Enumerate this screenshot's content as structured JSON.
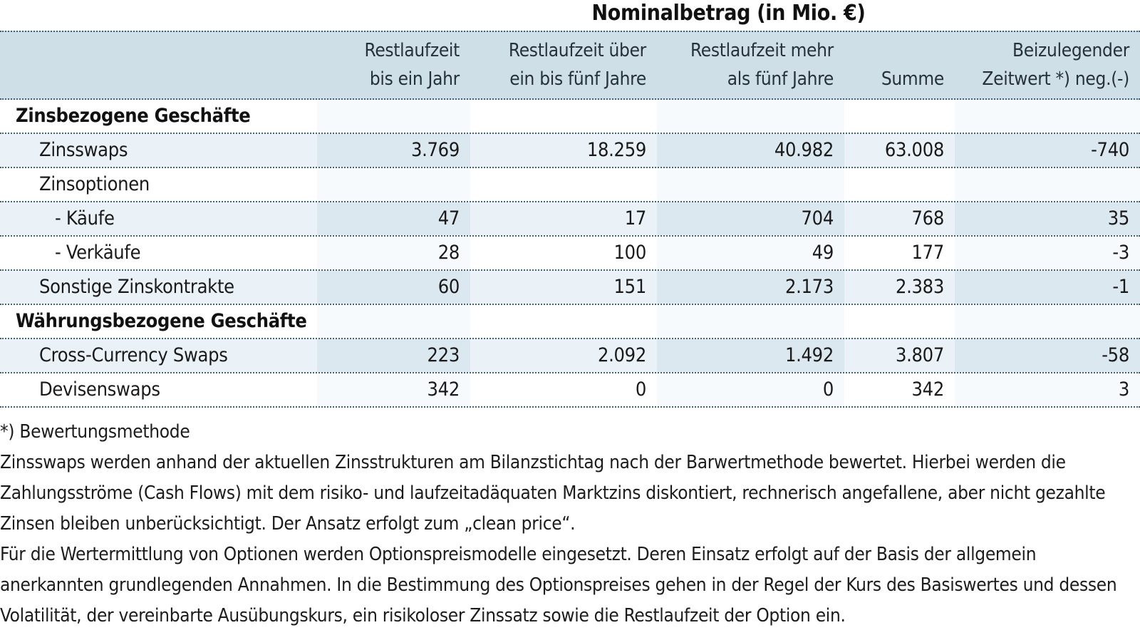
{
  "title": "Nominalbetrag (in Mio. €)",
  "table": {
    "header": {
      "col1_line1": "Restlaufzeit",
      "col1_line2": "bis ein Jahr",
      "col2_line1": "Restlaufzeit über",
      "col2_line2": "ein bis fünf Jahre",
      "col3_line1": "Restlaufzeit mehr",
      "col3_line2": "als fünf Jahre",
      "col4_line1": "",
      "col4_line2": "Summe",
      "col5_line1": "Beizulegender",
      "col5_line2": "Zeitwert *) neg.(-)"
    },
    "rows": [
      {
        "label": "Zinsbezogene Geschäfte",
        "values": [
          "",
          "",
          "",
          "",
          ""
        ]
      },
      {
        "label": "Zinsswaps",
        "values": [
          "3.769",
          "18.259",
          "40.982",
          "63.008",
          "-740"
        ]
      },
      {
        "label": "Zinsoptionen",
        "values": [
          "",
          "",
          "",
          "",
          ""
        ]
      },
      {
        "label": "- Käufe",
        "values": [
          "47",
          "17",
          "704",
          "768",
          "35"
        ]
      },
      {
        "label": "- Verkäufe",
        "values": [
          "28",
          "100",
          "49",
          "177",
          "-3"
        ]
      },
      {
        "label": "Sonstige Zinskontrakte",
        "values": [
          "60",
          "151",
          "2.173",
          "2.383",
          "-1"
        ]
      },
      {
        "label": "Währungsbezogene Geschäfte",
        "values": [
          "",
          "",
          "",
          "",
          ""
        ]
      },
      {
        "label": "Cross-Currency Swaps",
        "values": [
          "223",
          "2.092",
          "1.492",
          "3.807",
          "-58"
        ]
      },
      {
        "label": "Devisenswaps",
        "values": [
          "342",
          "0",
          "0",
          "342",
          "3"
        ]
      }
    ]
  },
  "footnote": {
    "heading": "*) Bewertungsmethode",
    "para1": "Zinsswaps werden anhand der aktuellen Zinsstrukturen am Bilanzstichtag nach der Barwertmethode bewertet. Hierbei werden die Zahlungsströme (Cash Flows) mit dem risiko- und laufzeitadäquaten Marktzins diskontiert, rechnerisch angefallene, aber nicht gezahlte Zinsen bleiben unberücksichtigt. Der Ansatz erfolgt zum „clean price“.",
    "para2": "Für die Wertermittlung von Optionen werden Optionspreismodelle eingesetzt. Deren Einsatz erfolgt auf der Basis der allgemein anerkannten grundlegenden Annahmen. In die Bestimmung des Optionspreises gehen in der Regel der Kurs des Basiswertes und dessen Volatilität, der vereinbarte Ausübungskurs, ein risikoloser Zinssatz sowie die Restlaufzeit der Option ein."
  },
  "colors": {
    "header_bg": "#cfdfe8",
    "row_shade": "#ebf2f7",
    "column_shade": "#f6fafc",
    "row_column_overlap": "#dce8f0",
    "dotted_line": "#3f617a",
    "text": "#1a1a1a"
  }
}
